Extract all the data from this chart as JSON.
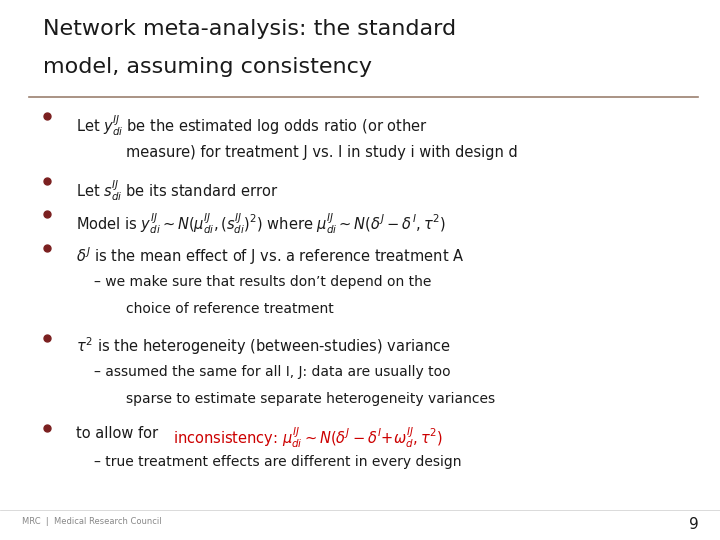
{
  "title_line1": "Network meta-analysis: the standard",
  "title_line2": "model, assuming consistency",
  "bg_color": "#ffffff",
  "title_color": "#1a1a1a",
  "bullet_color": "#7b2020",
  "text_color": "#1a1a1a",
  "red_color": "#cc0000",
  "footer_left": "MRC  |  Medical Research Council",
  "page_number": "9",
  "title_fontsize": 16,
  "body_fontsize": 10.5,
  "sub_fontsize": 10,
  "footer_fontsize": 6
}
